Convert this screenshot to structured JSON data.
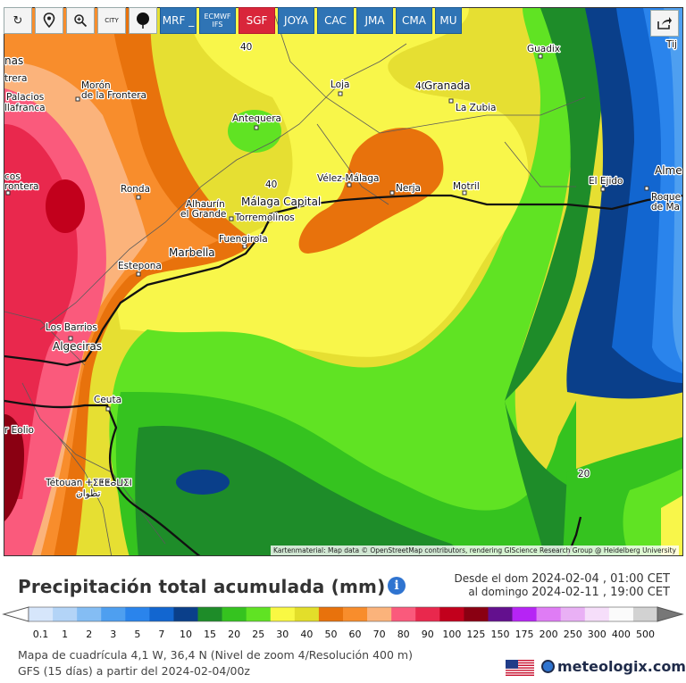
{
  "toolbar": {
    "tools": [
      "refresh-icon",
      "location-pin-icon",
      "zoom-icon",
      "city-icon",
      "ball-marker-icon"
    ],
    "city_label": "CITY",
    "models": [
      {
        "label": "MRF _",
        "active": false
      },
      {
        "label": "ECMWF IFS",
        "active": false
      },
      {
        "label": "SGF",
        "active": true
      },
      {
        "label": "JOYA",
        "active": false
      },
      {
        "label": "CAC",
        "active": false
      },
      {
        "label": "JMA",
        "active": false
      },
      {
        "label": "CMA",
        "active": false
      },
      {
        "label": "MU",
        "active": false
      }
    ]
  },
  "map": {
    "places": [
      "nas",
      "trera",
      "Palacios",
      "llafranca",
      "Morón",
      "de la Frontera",
      "cos",
      "rontera",
      "Ronda",
      "Alhaurín",
      "el Grande",
      "Málaga Capital",
      "Torremolinos",
      "Fuengirola",
      "Marbella",
      "Estepona",
      "Los Barrios",
      "Algeciras",
      "Ceuta",
      "r Eolio",
      "Tétouan ⵜⵉⵟⵟⴰⵡⵉⵏ",
      "تطوان",
      "Antequera",
      "Loja",
      "Granada",
      "La Zubia",
      "Vélez-Málaga",
      "Nerja",
      "Motril",
      "Guadix",
      "El Ejido",
      "Alme",
      "Roque",
      "de Ma",
      "Tij"
    ],
    "contour_labels": [
      "40",
      "40",
      "40",
      "20"
    ],
    "attribution": "Kartenmaterial: Map data © OpenStreetMap contributors, rendering GIScience Research Group @ Heidelberg University"
  },
  "title": "Precipitación total acumulada (mm)",
  "dates": {
    "from_prefix": "Desde el dom",
    "from_date": "2024-02-04 , 01:00 CET",
    "to_prefix": "al domingo",
    "to_date": "2024-02-11 , 19:00 CET"
  },
  "legend": {
    "values": [
      "0.1",
      "1",
      "2",
      "3",
      "5",
      "7",
      "10",
      "15",
      "20",
      "25",
      "30",
      "40",
      "50",
      "60",
      "70",
      "80",
      "90",
      "100",
      "125",
      "150",
      "175",
      "200",
      "250",
      "300",
      "400",
      "500"
    ],
    "colors": [
      "#d6e6fb",
      "#b3d4f7",
      "#84bdf4",
      "#4e9ff0",
      "#2a84ec",
      "#1266d0",
      "#0a3f8a",
      "#1e8c29",
      "#35c31f",
      "#60e323",
      "#f9f843",
      "#e3de2a",
      "#e8720c",
      "#f88d2c",
      "#fbb37b",
      "#fa5a7c",
      "#e9284d",
      "#c2001c",
      "#8a0012",
      "#63108e",
      "#b624f5",
      "#df7cf5",
      "#e9b0f5",
      "#f6defa",
      "#fbfbfb",
      "#d2d2d2"
    ]
  },
  "footer": {
    "line1": "Mapa de cuadrícula 4,1 W, 36,4 N  (Nivel de zoom 4/Resolución 400 m)",
    "line2": "GFS  (15 días)  a partir del 2024-02-04/00z",
    "brand": "meteologix.com"
  }
}
